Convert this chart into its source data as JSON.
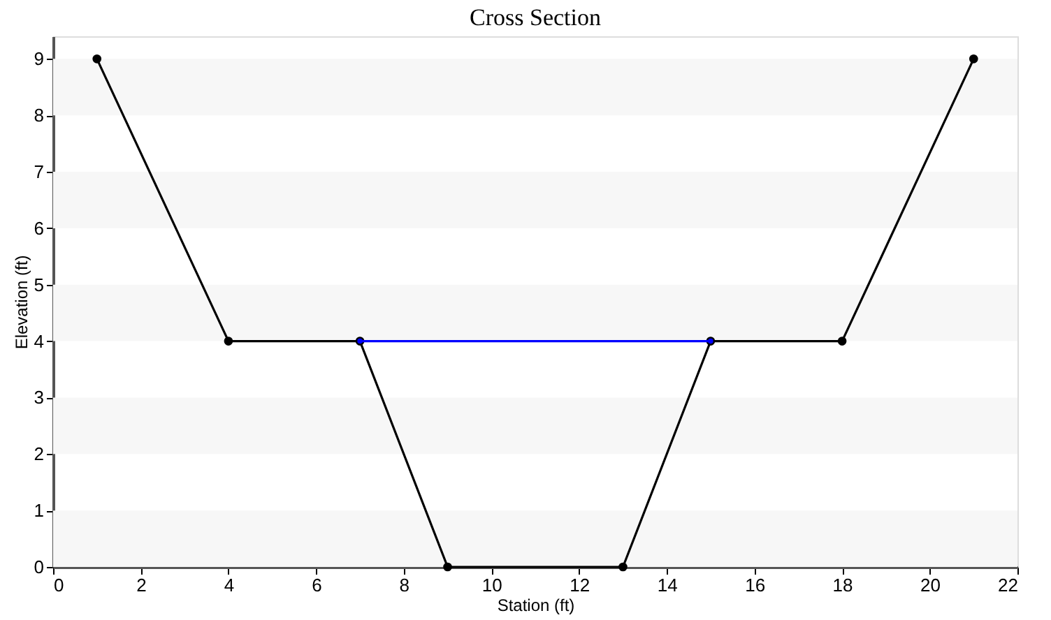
{
  "chart_data": {
    "type": "line",
    "title": "Cross Section",
    "xlabel": "Station (ft)",
    "ylabel": "Elevation (ft)",
    "xlim": [
      0,
      22
    ],
    "xticks": [
      0,
      2,
      4,
      6,
      8,
      10,
      12,
      14,
      16,
      18,
      20,
      22
    ],
    "ylim": [
      0,
      9.4
    ],
    "yticks": [
      0,
      1,
      2,
      3,
      4,
      5,
      6,
      7,
      8,
      9
    ],
    "grid": false,
    "marker": "circle",
    "line_style": "solid",
    "bands": [
      {
        "axis": "y",
        "from": 0,
        "to": 1,
        "color": "#f7f7f7"
      },
      {
        "axis": "y",
        "from": 2,
        "to": 3,
        "color": "#f7f7f7"
      },
      {
        "axis": "y",
        "from": 4,
        "to": 5,
        "color": "#f7f7f7"
      },
      {
        "axis": "y",
        "from": 6,
        "to": 7,
        "color": "#f7f7f7"
      },
      {
        "axis": "y",
        "from": 8,
        "to": 9,
        "color": "#f7f7f7"
      }
    ],
    "series": [
      {
        "color": "#000000",
        "x": [
          1,
          4,
          7,
          9,
          13,
          15,
          18,
          21
        ],
        "values": [
          9,
          4,
          4,
          0,
          0,
          4,
          4,
          9
        ]
      },
      {
        "color": "#0000ff",
        "x": [
          7,
          15
        ],
        "values": [
          4,
          4
        ]
      }
    ]
  }
}
